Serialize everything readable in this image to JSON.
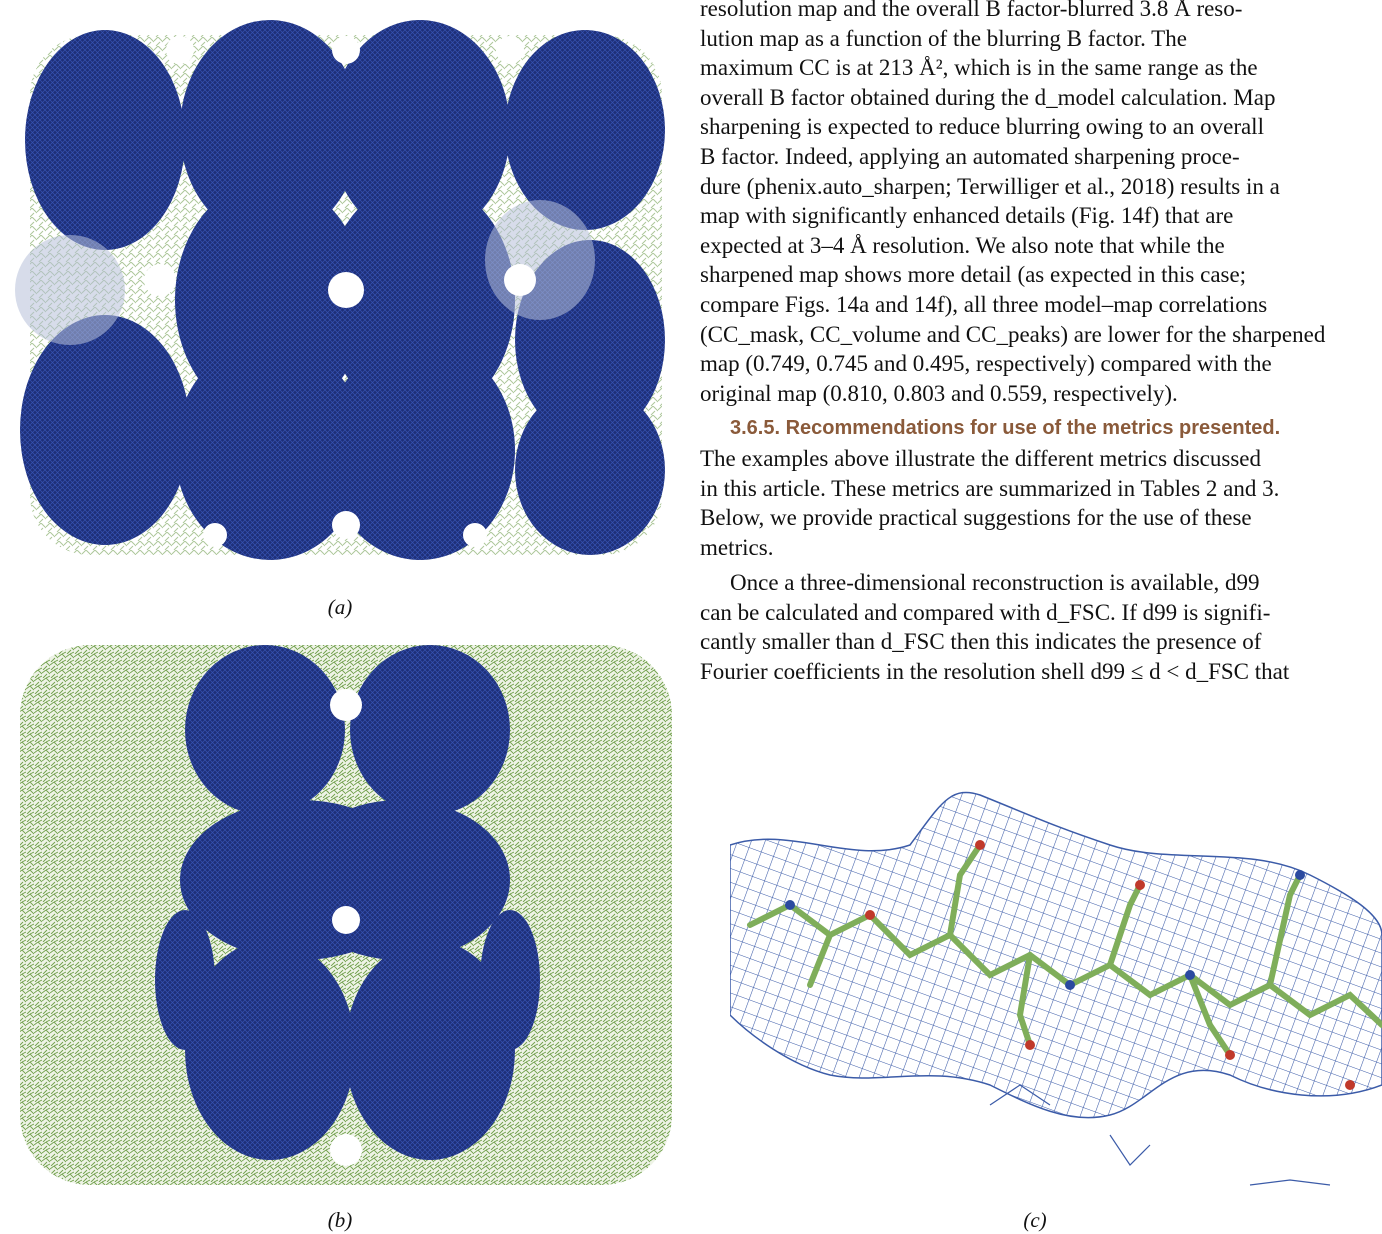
{
  "panels": {
    "a": {
      "label": "(a)"
    },
    "b": {
      "label": "(b)"
    },
    "c": {
      "label": "(c)"
    }
  },
  "text": {
    "l1": "resolution map and the overall B factor-blurred 3.8 Å reso-",
    "l2": "lution map as a function of the blurring B factor. The",
    "l3": "maximum CC is at 213 Å², which is in the same range as the",
    "l4": "overall B factor obtained during the d_model calculation. Map",
    "l5": "sharpening is expected to reduce blurring owing to an overall",
    "l6": "B factor. Indeed, applying an automated sharpening proce-",
    "l7": "dure (phenix.auto_sharpen; Terwilliger et al., 2018) results in a",
    "l8": "map with significantly enhanced details (Fig. 14f) that are",
    "l9": "expected at 3–4 Å resolution. We also note that while the",
    "l10": "sharpened map shows more detail (as expected in this case;",
    "l11": "compare Figs. 14a and 14f), all three model–map correlations",
    "l12": "(CC_mask, CC_volume and CC_peaks) are lower for the sharpened",
    "l13": "map (0.749, 0.745 and 0.495, respectively) compared with the",
    "l14": "original map (0.810, 0.803 and 0.559, respectively).",
    "heading": "3.6.5. Recommendations for use of the metrics presented.",
    "h1": "The examples above illustrate the different metrics discussed",
    "h2": "in this article. These metrics are summarized in Tables 2 and 3.",
    "h3": "Below, we provide practical suggestions for the use of these",
    "h4": "metrics.",
    "p1": "Once a three-dimensional reconstruction is available, d99",
    "p2": "can be calculated and compared with d_FSC. If d99 is signifi-",
    "p3": "cantly smaller than d_FSC then this indicates the presence of",
    "p4": "Fourier coefficients in the resolution shell d99 ≤ d < d_FSC that"
  },
  "colors": {
    "mesh": "#1f3a8a",
    "model": "#7fae5a",
    "oxygen": "#c0392b",
    "nitrogen": "#2b4aa0",
    "heading": "#8a5a3a"
  }
}
